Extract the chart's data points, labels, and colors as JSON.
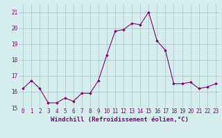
{
  "x": [
    0,
    1,
    2,
    3,
    4,
    5,
    6,
    7,
    8,
    9,
    10,
    11,
    12,
    13,
    14,
    15,
    16,
    17,
    18,
    19,
    20,
    21,
    22,
    23
  ],
  "y": [
    16.2,
    16.7,
    16.2,
    15.3,
    15.3,
    15.6,
    15.4,
    15.9,
    15.9,
    16.7,
    18.3,
    19.8,
    19.9,
    20.3,
    20.2,
    21.0,
    19.2,
    18.6,
    16.5,
    16.5,
    16.6,
    16.2,
    16.3,
    16.5
  ],
  "line_color": "#800080",
  "marker": "D",
  "marker_size": 1.8,
  "bg_color": "#d5eeed",
  "grid_color": "#aabbcc",
  "xlabel": "Windchill (Refroidissement éolien,°C)",
  "xlabel_fontsize": 6.5,
  "tick_fontsize": 5.5,
  "ylim": [
    15.0,
    21.5
  ],
  "xlim": [
    -0.5,
    23.5
  ],
  "yticks": [
    15,
    16,
    17,
    18,
    19,
    20,
    21
  ],
  "xticks": [
    0,
    1,
    2,
    3,
    4,
    5,
    6,
    7,
    8,
    9,
    10,
    11,
    12,
    13,
    14,
    15,
    16,
    17,
    18,
    19,
    20,
    21,
    22,
    23
  ]
}
